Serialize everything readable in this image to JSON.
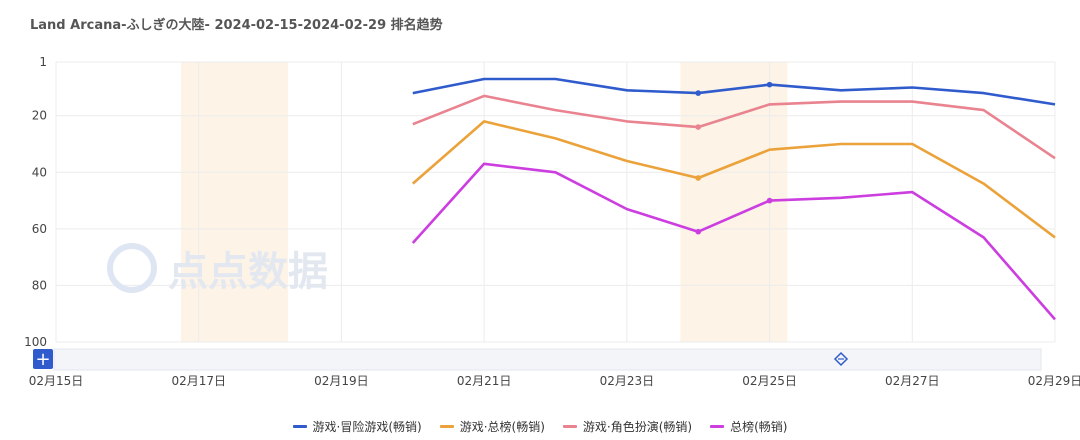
{
  "title": "Land Arcana-ふしぎの大陸- 2024-02-15-2024-02-29 排名趋势",
  "watermark": "点点数据",
  "zoom_button": "+",
  "chart_data": {
    "type": "line",
    "title": "Land Arcana-ふしぎの大陸- 2024-02-15-2024-02-29 排名趋势",
    "y_inverted": true,
    "ylim": [
      1,
      100
    ],
    "y_ticks": [
      1,
      20,
      40,
      60,
      80,
      100
    ],
    "x_ticks": [
      "02月15日",
      "02月17日",
      "02月19日",
      "02月21日",
      "02月23日",
      "02月25日",
      "02月27日",
      "02月29日"
    ],
    "x": [
      "02-15",
      "02-16",
      "02-17",
      "02-18",
      "02-19",
      "02-20",
      "02-21",
      "02-22",
      "02-23",
      "02-24",
      "02-25",
      "02-26",
      "02-27",
      "02-28",
      "02-29"
    ],
    "highlight_ranges": [
      [
        "02-17",
        "02-18"
      ],
      [
        "02-24",
        "02-25"
      ]
    ],
    "grid": true,
    "legend_position": "bottom-center",
    "series": [
      {
        "name": "游戏·冒险游戏(畅销)",
        "color": "#2f5bcc",
        "values": [
          null,
          null,
          null,
          null,
          null,
          12,
          7,
          7,
          11,
          12,
          9,
          11,
          10,
          12,
          16
        ],
        "markers": [
          9,
          10
        ]
      },
      {
        "name": "游戏·总榜(畅销)",
        "color": "#eca23a",
        "values": [
          null,
          null,
          null,
          null,
          null,
          44,
          22,
          28,
          36,
          42,
          32,
          30,
          30,
          44,
          63
        ],
        "markers": [
          9
        ]
      },
      {
        "name": "游戏·角色扮演(畅销)",
        "color": "#e9838f",
        "values": [
          null,
          null,
          null,
          null,
          null,
          23,
          13,
          18,
          22,
          24,
          16,
          15,
          15,
          18,
          35
        ],
        "markers": [
          9
        ]
      },
      {
        "name": "总榜(畅销)",
        "color": "#cc3ee0",
        "values": [
          null,
          null,
          null,
          null,
          null,
          65,
          37,
          40,
          53,
          61,
          50,
          49,
          47,
          63,
          92
        ],
        "markers": [
          9,
          10
        ]
      }
    ]
  }
}
